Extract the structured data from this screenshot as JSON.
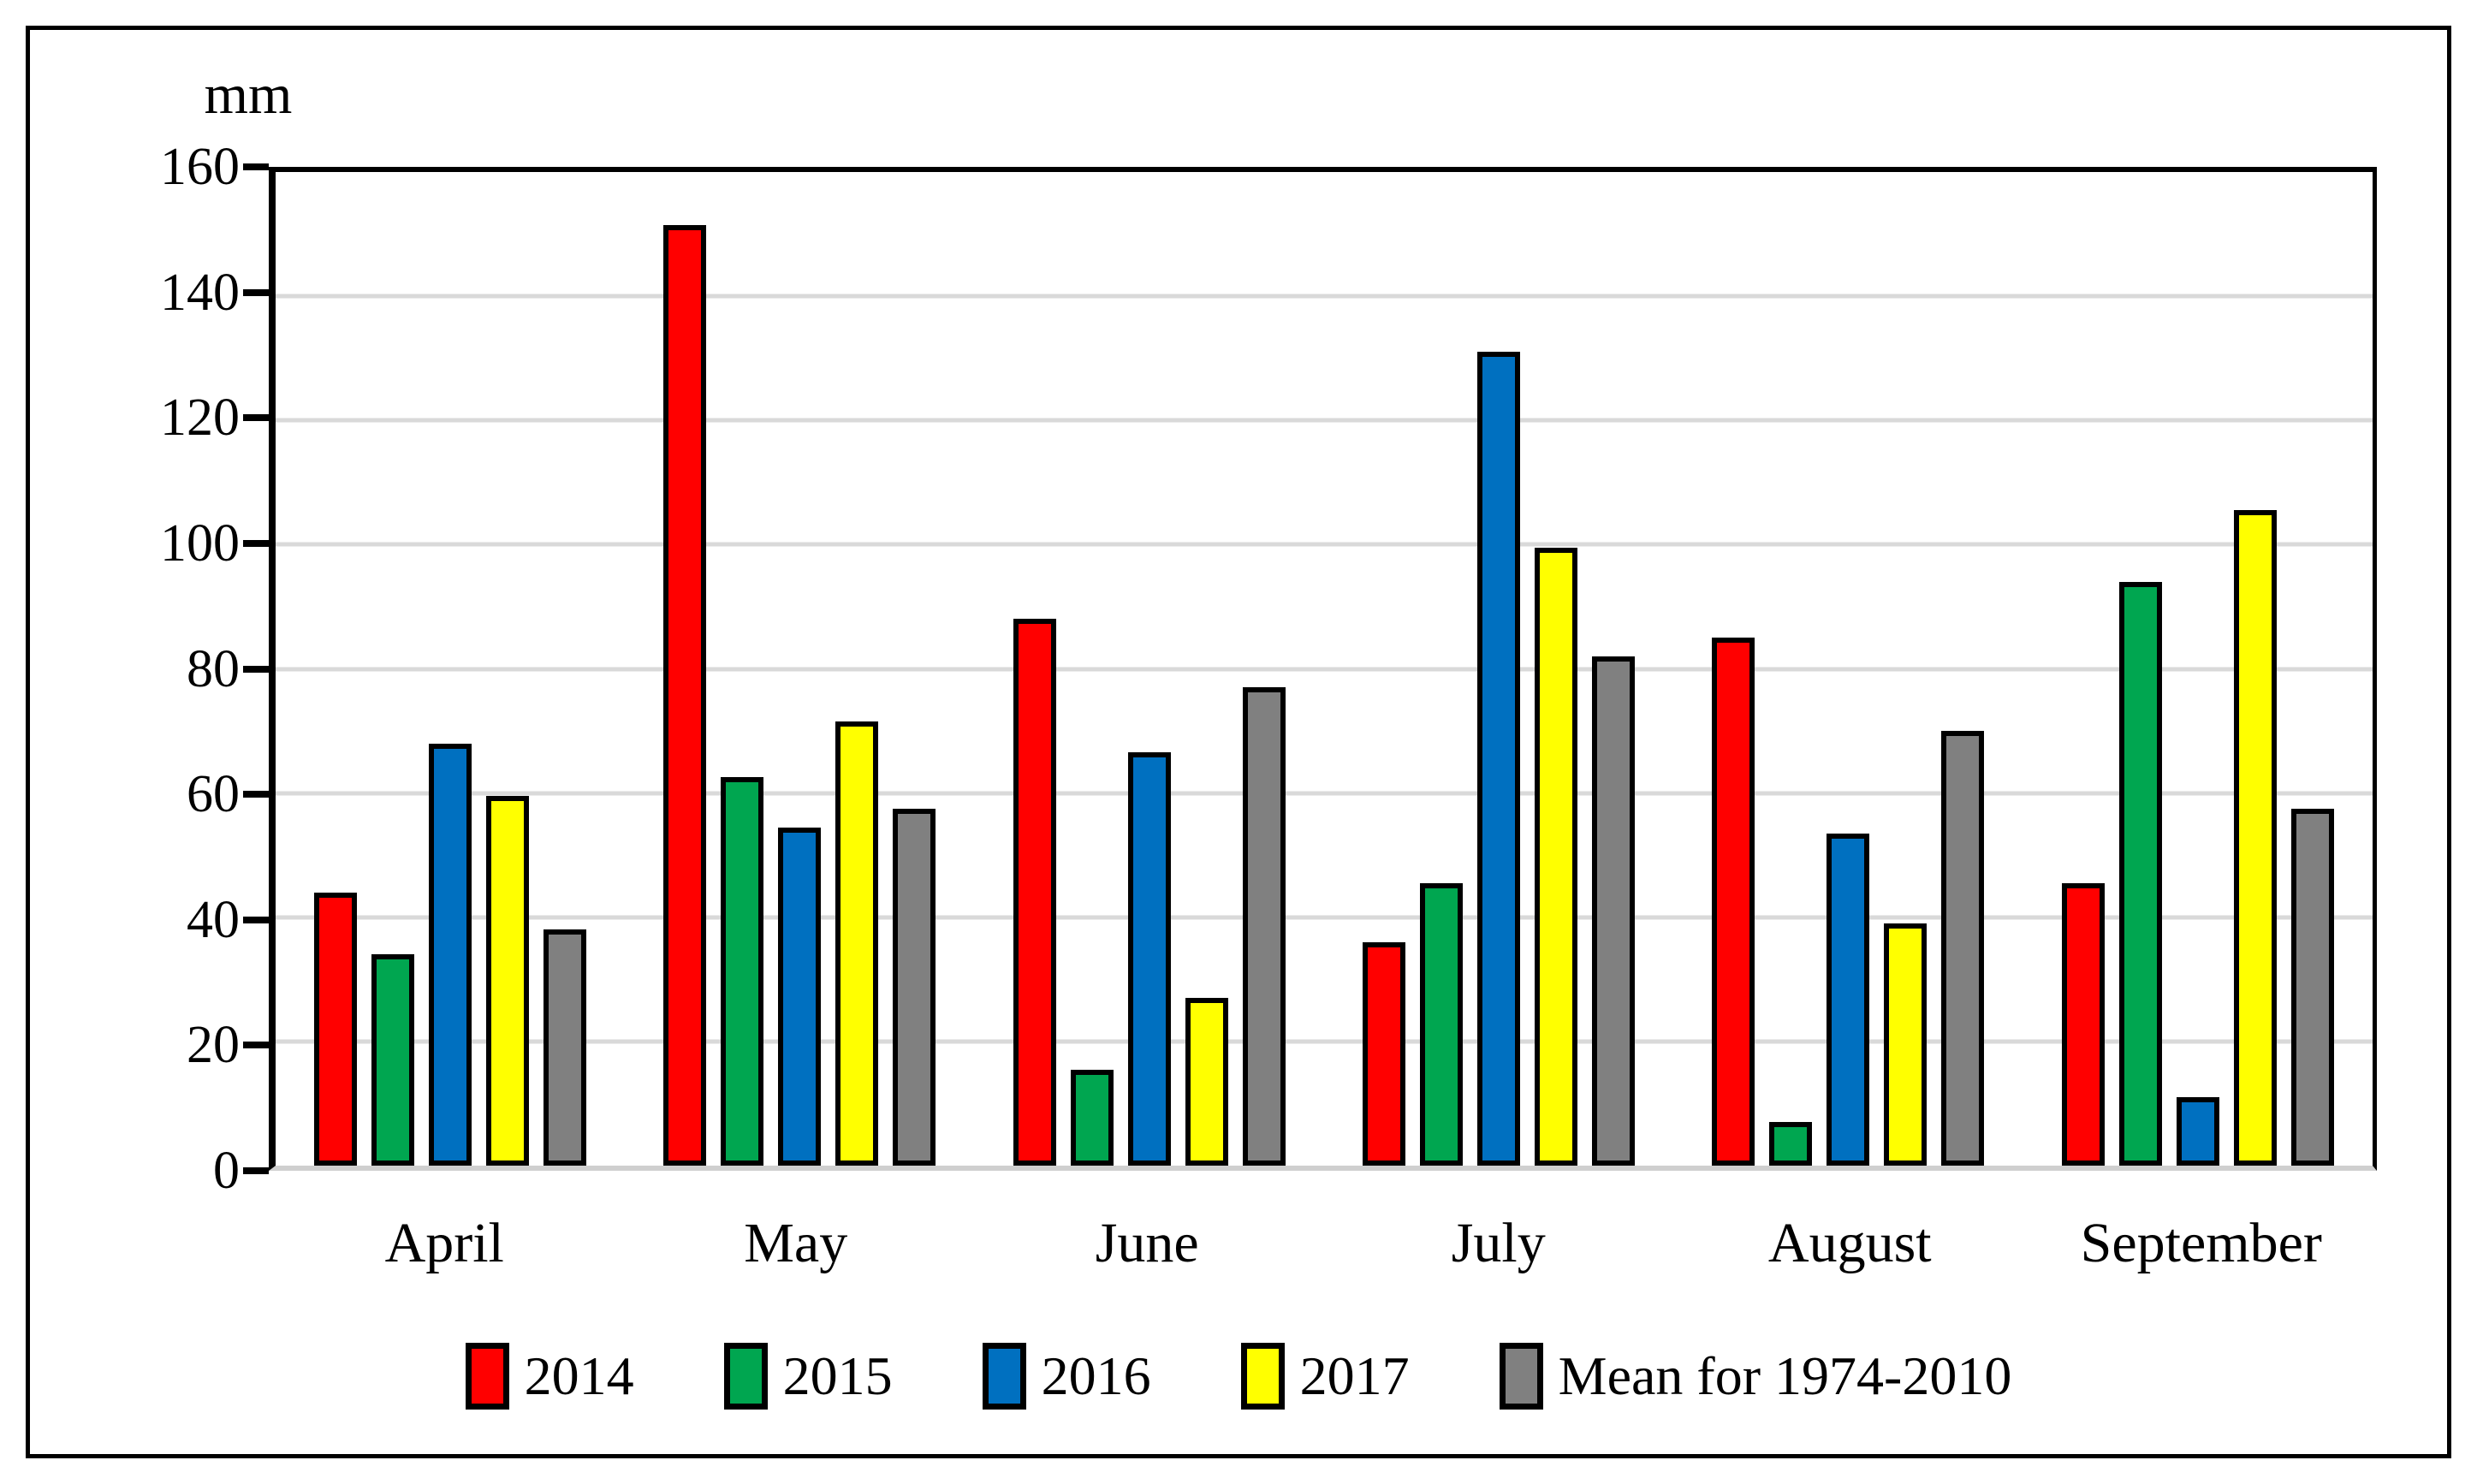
{
  "axis": {
    "y_title": "mm",
    "y_ticks": [
      0,
      20,
      40,
      60,
      80,
      100,
      120,
      140,
      160
    ]
  },
  "chart_data": {
    "type": "bar",
    "title": "",
    "xlabel": "",
    "ylabel": "mm",
    "ylim": [
      0,
      160
    ],
    "y_tick_step": 20,
    "grid": true,
    "legend_position": "bottom",
    "categories": [
      "April",
      "May",
      "June",
      "July",
      "August",
      "September"
    ],
    "series": [
      {
        "name": "2014",
        "color": "#FF0000",
        "values": [
          44,
          151.5,
          88,
          36,
          85,
          45.5
        ]
      },
      {
        "name": "2015",
        "color": "#00A650",
        "values": [
          34,
          62.5,
          15.5,
          45.5,
          7,
          94
        ]
      },
      {
        "name": "2016",
        "color": "#0070C0",
        "values": [
          68,
          54.5,
          66.5,
          131,
          53.5,
          11
        ]
      },
      {
        "name": "2017",
        "color": "#FFFF00",
        "values": [
          59.5,
          71.5,
          27,
          99.5,
          39,
          105.5
        ]
      },
      {
        "name": "Mean for 1974-2010",
        "color": "#808080",
        "values": [
          38,
          57.5,
          77,
          82,
          70,
          57.5
        ]
      }
    ],
    "colors": {
      "gridline": "#D9D9D9",
      "baseline": "#CFCFCF",
      "axis": "#000000",
      "bar_border": "#000000"
    }
  }
}
